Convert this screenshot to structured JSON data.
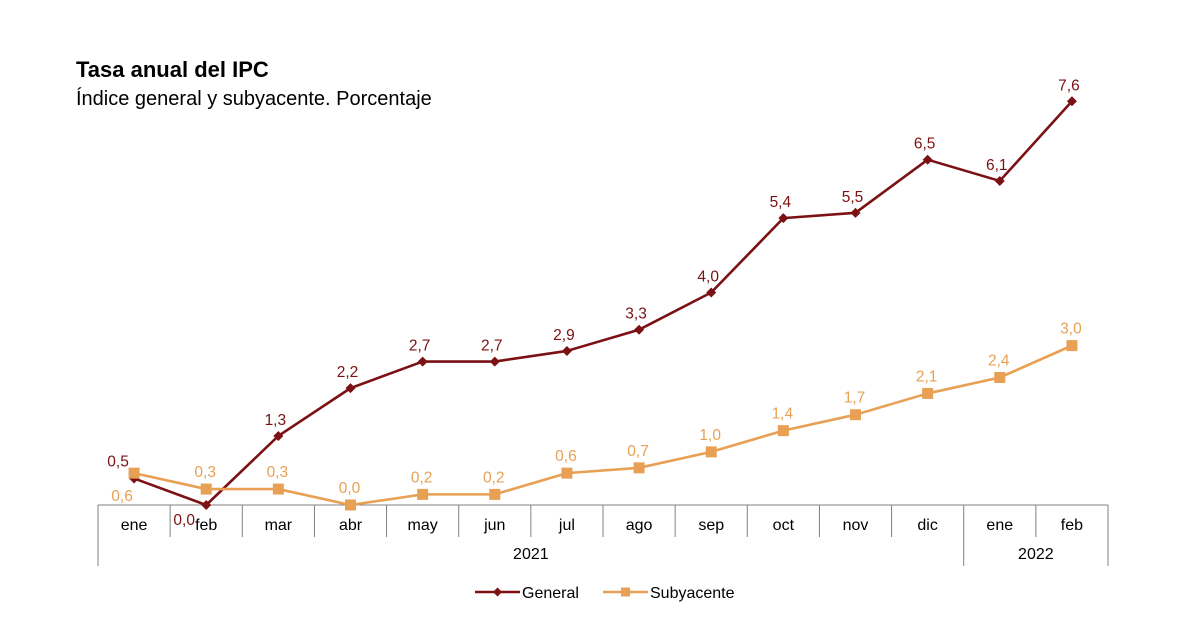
{
  "chart_data": {
    "type": "line",
    "title": "Tasa anual del IPC",
    "subtitle": "Índice general y subyacente. Porcentaje",
    "categories": [
      "ene",
      "feb",
      "mar",
      "abr",
      "may",
      "jun",
      "jul",
      "ago",
      "sep",
      "oct",
      "nov",
      "dic",
      "ene",
      "feb"
    ],
    "years": [
      {
        "label": "2021",
        "start": 0,
        "end": 11
      },
      {
        "label": "2022",
        "start": 12,
        "end": 13
      }
    ],
    "series": [
      {
        "name": "General",
        "color": "#7b1113",
        "marker": "diamond",
        "values": [
          0.5,
          0.0,
          1.3,
          2.2,
          2.7,
          2.7,
          2.9,
          3.3,
          4.0,
          5.4,
          5.5,
          6.5,
          6.1,
          7.6
        ],
        "labels": [
          "0,5",
          "0,0",
          "1,3",
          "2,2",
          "2,7",
          "2,7",
          "2,9",
          "3,3",
          "4,0",
          "5,4",
          "5,5",
          "6,5",
          "6,1",
          "7,6"
        ]
      },
      {
        "name": "Subyacente",
        "color": "#e8a055",
        "marker": "square",
        "values": [
          0.6,
          0.3,
          0.3,
          0.0,
          0.2,
          0.2,
          0.6,
          0.7,
          1.0,
          1.4,
          1.7,
          2.1,
          2.4,
          3.0
        ],
        "labels": [
          "0,6",
          "0,3",
          "0,3",
          "0,0",
          "0,2",
          "0,2",
          "0,6",
          "0,7",
          "1,0",
          "1,4",
          "1,7",
          "2,1",
          "2,4",
          "3,0"
        ]
      }
    ],
    "ylim": [
      0,
      8
    ],
    "xlabel": "",
    "ylabel": "",
    "grid": false,
    "legend_position": "bottom"
  }
}
